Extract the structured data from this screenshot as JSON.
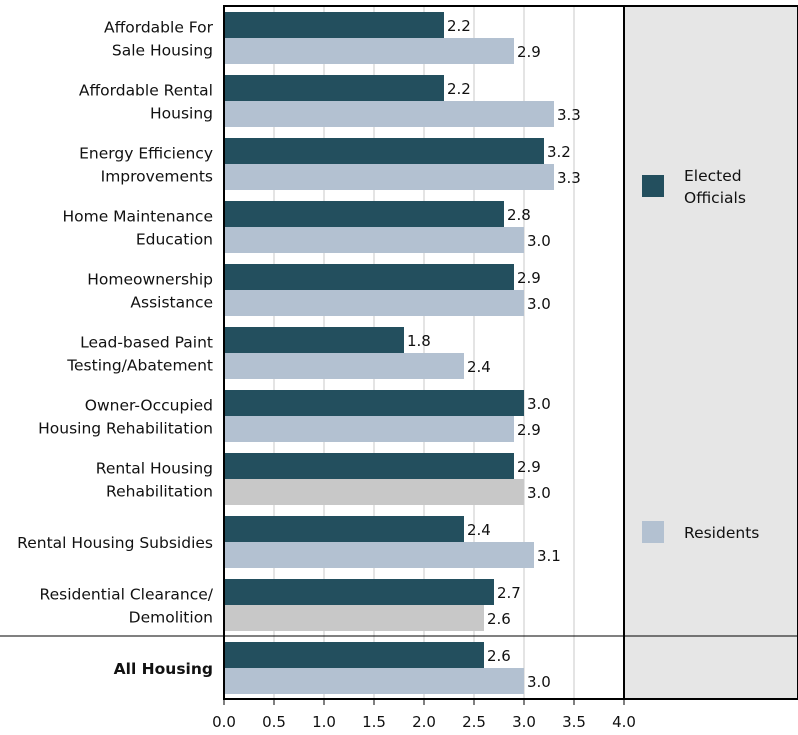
{
  "chart_data": {
    "type": "bar",
    "orientation": "horizontal",
    "xlim": [
      0,
      4.0
    ],
    "x_ticks": [
      "0.0",
      "0.5",
      "1.0",
      "1.5",
      "2.0",
      "2.5",
      "3.0",
      "3.5",
      "4.0"
    ],
    "grid": true,
    "legend_placement": "right",
    "categories": [
      [
        "Affordable For",
        "Sale Housing"
      ],
      [
        "Affordable Rental",
        "Housing"
      ],
      [
        "Energy Efficiency",
        "Improvements"
      ],
      [
        "Home Maintenance",
        "Education"
      ],
      [
        "Homeownership",
        "Assistance"
      ],
      [
        "Lead-based Paint",
        "Testing/Abatement"
      ],
      [
        "Owner-Occupied",
        "Housing Rehabilitation"
      ],
      [
        "Rental Housing",
        "Rehabilitation"
      ],
      [
        "Rental Housing Subsidies"
      ],
      [
        "Residential Clearance/",
        "Demolition"
      ],
      [
        "All Housing"
      ]
    ],
    "bold_categories": [
      10
    ],
    "series": [
      {
        "name": "Elected Officials",
        "legend_lines": [
          "Elected",
          "Officials"
        ],
        "color": "#234f5e",
        "values": [
          2.2,
          2.2,
          3.2,
          2.8,
          2.9,
          1.8,
          3.0,
          2.9,
          2.4,
          2.7,
          2.6
        ],
        "labels": [
          "2.2",
          "2.2",
          "3.2",
          "2.8",
          "2.9",
          "1.8",
          "3.0",
          "2.9",
          "2.4",
          "2.7",
          "2.6"
        ]
      },
      {
        "name": "Residents",
        "legend_lines": [
          "Residents"
        ],
        "color": "#b3c1d1",
        "highlight_color": "#c8c8c8",
        "highlight_indices": [
          7,
          9
        ],
        "values": [
          2.9,
          3.3,
          3.3,
          3.0,
          3.0,
          2.4,
          2.9,
          3.0,
          3.1,
          2.6,
          3.0
        ],
        "labels": [
          "2.9",
          "3.3",
          "3.3",
          "3.0",
          "3.0",
          "2.4",
          "2.9",
          "3.0",
          "3.1",
          "2.6",
          "3.0"
        ]
      }
    ]
  }
}
